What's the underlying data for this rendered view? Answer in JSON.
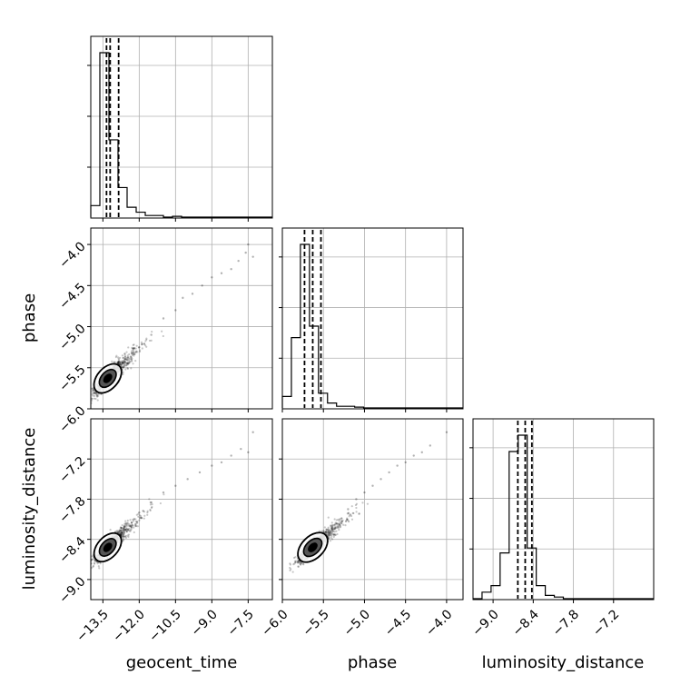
{
  "chart_data": {
    "type": "corner",
    "parameters": [
      "geocent_time",
      "phase",
      "luminosity_distance"
    ],
    "axis_labels": {
      "geocent_time": "geocent_time",
      "phase": "phase",
      "luminosity_distance": "luminosity_distance"
    },
    "ranges": {
      "geocent_time": [
        -14.0,
        -6.5
      ],
      "phase": [
        -6.0,
        -3.8
      ],
      "luminosity_distance": [
        -9.3,
        -6.6
      ]
    },
    "ticks": {
      "geocent_time": [
        -13.5,
        -12.0,
        -10.5,
        -9.0,
        -7.5
      ],
      "phase": [
        -6.0,
        -5.5,
        -5.0,
        -4.5,
        -4.0
      ],
      "luminosity_distance": [
        -9.0,
        -8.4,
        -7.8,
        -7.2
      ]
    },
    "tick_labels": {
      "geocent_time": [
        "−13.5",
        "−12.0",
        "−10.5",
        "−9.0",
        "−7.5"
      ],
      "phase": [
        "−6.0",
        "−5.5",
        "−5.0",
        "−4.5",
        "−4.0"
      ],
      "luminosity_distance": [
        "−9.0",
        "−8.4",
        "−7.8",
        "−7.2"
      ]
    },
    "quantiles": {
      "geocent_time": [
        -13.35,
        -13.2,
        -12.85
      ],
      "phase": [
        -5.73,
        -5.63,
        -5.53
      ],
      "luminosity_distance": [
        -8.63,
        -8.52,
        -8.42
      ]
    },
    "histograms": {
      "geocent_time": {
        "edges": [
          -14.0,
          -13.625,
          -13.25,
          -12.875,
          -12.5,
          -12.125,
          -11.75,
          -11.375,
          -11.0,
          -10.625,
          -10.25,
          -9.875,
          -9.5,
          -9.125,
          -8.75,
          -8.375,
          -8.0,
          -7.625,
          -7.25,
          -6.875,
          -6.5
        ],
        "counts": [
          0.07,
          1.0,
          0.47,
          0.18,
          0.06,
          0.03,
          0.01,
          0.01,
          0.0,
          0.005,
          0.0,
          0.0,
          0.0,
          0.0,
          0.0,
          0.0,
          0.0,
          0.0,
          0.0,
          0.0
        ]
      },
      "phase": {
        "edges": [
          -6.0,
          -5.89,
          -5.78,
          -5.67,
          -5.56,
          -5.45,
          -5.34,
          -5.23,
          -5.12,
          -5.01,
          -4.9,
          -4.79,
          -4.68,
          -4.57,
          -4.46,
          -4.35,
          -4.24,
          -4.13,
          -4.02,
          -3.91,
          -3.8
        ],
        "counts": [
          0.07,
          0.43,
          1.0,
          0.5,
          0.09,
          0.03,
          0.01,
          0.01,
          0.005,
          0.0,
          0.0,
          0.0,
          0.0,
          0.0,
          0.0,
          0.0,
          0.0,
          0.0,
          0.0,
          0.0
        ]
      },
      "luminosity_distance": {
        "edges": [
          -9.3,
          -9.165,
          -9.03,
          -8.895,
          -8.76,
          -8.625,
          -8.49,
          -8.355,
          -8.22,
          -8.085,
          -7.95,
          -7.815,
          -7.68,
          -7.545,
          -7.41,
          -7.275,
          -7.14,
          -7.005,
          -6.87,
          -6.735,
          -6.6
        ],
        "counts": [
          0.0,
          0.04,
          0.08,
          0.28,
          0.9,
          1.0,
          0.31,
          0.08,
          0.02,
          0.01,
          0.0,
          0.0,
          0.0,
          0.0,
          0.0,
          0.0,
          0.0,
          0.0,
          0.0,
          0.0
        ]
      }
    },
    "scatter_pairs": [
      {
        "x": "geocent_time",
        "y": "phase",
        "center": [
          -13.3,
          -5.63
        ],
        "sd": [
          0.3,
          0.1
        ],
        "rho": 0.85,
        "tail_points": [
          [
            -12.5,
            -5.45
          ],
          [
            -12.0,
            -5.25
          ],
          [
            -11.5,
            -5.1
          ],
          [
            -11.0,
            -4.9
          ],
          [
            -10.5,
            -4.8
          ],
          [
            -10.2,
            -4.65
          ],
          [
            -9.8,
            -4.6
          ],
          [
            -9.4,
            -4.5
          ],
          [
            -9.0,
            -4.4
          ],
          [
            -8.6,
            -4.35
          ],
          [
            -8.2,
            -4.3
          ],
          [
            -7.9,
            -4.2
          ],
          [
            -7.6,
            -4.1
          ],
          [
            -7.3,
            -4.15
          ],
          [
            -7.5,
            -4.0
          ]
        ]
      },
      {
        "x": "geocent_time",
        "y": "luminosity_distance",
        "center": [
          -13.3,
          -8.52
        ],
        "sd": [
          0.3,
          0.12
        ],
        "rho": 0.85,
        "tail_points": [
          [
            -12.4,
            -8.2
          ],
          [
            -12.0,
            -8.0
          ],
          [
            -11.5,
            -7.85
          ],
          [
            -11.0,
            -7.7
          ],
          [
            -10.5,
            -7.6
          ],
          [
            -10.0,
            -7.5
          ],
          [
            -9.5,
            -7.4
          ],
          [
            -9.0,
            -7.3
          ],
          [
            -8.6,
            -7.25
          ],
          [
            -8.2,
            -7.15
          ],
          [
            -7.8,
            -7.05
          ],
          [
            -7.5,
            -7.1
          ],
          [
            -7.3,
            -6.8
          ]
        ]
      },
      {
        "x": "phase",
        "y": "luminosity_distance",
        "center": [
          -5.63,
          -8.52
        ],
        "sd": [
          0.1,
          0.12
        ],
        "rho": 0.88,
        "tail_points": [
          [
            -5.3,
            -8.1
          ],
          [
            -5.2,
            -7.95
          ],
          [
            -5.1,
            -7.8
          ],
          [
            -5.0,
            -7.7
          ],
          [
            -4.9,
            -7.6
          ],
          [
            -4.8,
            -7.5
          ],
          [
            -4.7,
            -7.4
          ],
          [
            -4.6,
            -7.3
          ],
          [
            -4.5,
            -7.25
          ],
          [
            -4.4,
            -7.15
          ],
          [
            -4.3,
            -7.1
          ],
          [
            -4.2,
            -7.0
          ],
          [
            -4.0,
            -6.8
          ]
        ]
      }
    ],
    "contour_levels": [
      "inner",
      "middle",
      "outer"
    ],
    "grid": true,
    "colors": {
      "points": "#000000",
      "hist_line": "#000000",
      "grid": "#b0b0b0",
      "contour_fill_inner": "#000000",
      "contour_fill_middle": "#555555",
      "contour_fill_outer": "#ffffff"
    }
  }
}
